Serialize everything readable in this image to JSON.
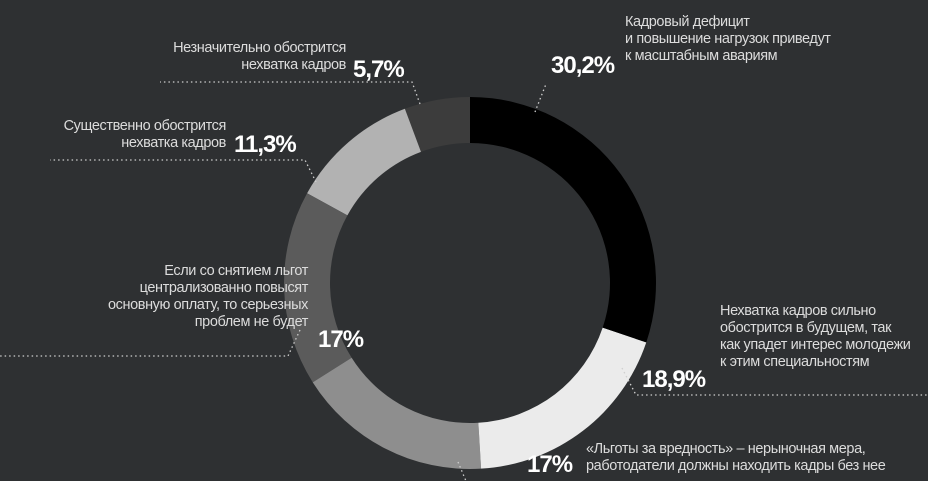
{
  "chart_data": {
    "type": "donut",
    "categories": [
      "Кадровый дефицит\nи повышение нагрузок приведут\nк масштабным авариям",
      "Нехватка кадров сильно\nобострится в будущем, так\nкак упадет интерес молодежи\nк этим специальностям",
      "«Льготы за вредность» – нерыночная мера,\nработодатели должны находить кадры без нее",
      "Если со снятием льгот\nцентрализованно повысят\nосновную оплату, то серьезных\nпроблем не будет",
      "Существенно обострится\nнехватка кадров",
      "Незначительно обострится\nнехватка кадров"
    ],
    "values": [
      30.2,
      18.9,
      17,
      17,
      11.3,
      5.7
    ],
    "value_labels": [
      "30,2%",
      "18,9%",
      "17%",
      "17%",
      "11,3%",
      "5,7%"
    ],
    "colors": [
      "#000000",
      "#ebebeb",
      "#8e8e8e",
      "#5b5b5b",
      "#b2b2b2",
      "#3c3c3c"
    ]
  }
}
